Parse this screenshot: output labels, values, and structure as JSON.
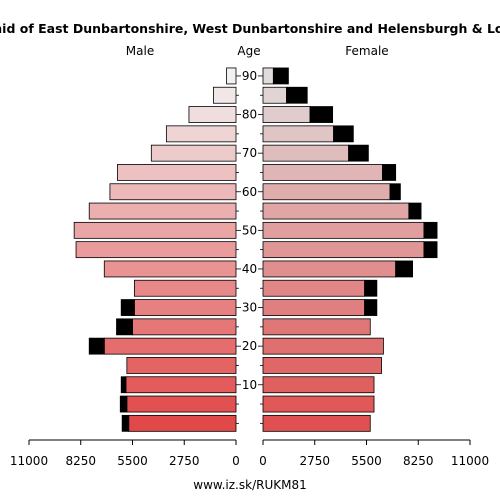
{
  "chart_data": {
    "type": "bar",
    "title": "Pyramid of East Dunbartonshire, West Dunbartonshire and Helensburgh & Lomond",
    "left_label": "Male",
    "center_label": "Age",
    "right_label": "Female",
    "footer": "www.iz.sk/RUKM81",
    "xlim": [
      0,
      11000
    ],
    "x_ticks": [
      0,
      2750,
      5500,
      8250,
      11000
    ],
    "x_tick_labels": [
      "0",
      "2750",
      "5500",
      "8250",
      "11000"
    ],
    "age_groups": [
      "0-4",
      "5-9",
      "10-14",
      "15-19",
      "20-24",
      "25-29",
      "30-34",
      "35-39",
      "40-44",
      "45-49",
      "50-54",
      "55-59",
      "60-64",
      "65-69",
      "70-74",
      "75-79",
      "80-84",
      "85-89",
      "90+"
    ],
    "age_ticks": [
      10,
      20,
      30,
      40,
      50,
      60,
      70,
      80,
      90
    ],
    "series": [
      {
        "name": "Male",
        "values": [
          5700,
          5800,
          5850,
          5800,
          7000,
          5500,
          5400,
          5400,
          7000,
          8500,
          8600,
          7800,
          6700,
          6300,
          4500,
          3700,
          2500,
          1200,
          500
        ],
        "excess": [
          350,
          350,
          250,
          0,
          800,
          850,
          700,
          0,
          0,
          0,
          0,
          0,
          0,
          0,
          0,
          0,
          0,
          0,
          0
        ]
      },
      {
        "name": "Female",
        "values": [
          5700,
          5900,
          5900,
          6300,
          6400,
          5700,
          5400,
          5400,
          7050,
          8550,
          8550,
          7750,
          6750,
          6350,
          4550,
          3750,
          2500,
          1250,
          550
        ],
        "excess": [
          0,
          0,
          0,
          0,
          0,
          0,
          650,
          650,
          900,
          700,
          700,
          650,
          550,
          700,
          1050,
          1050,
          1200,
          1100,
          800
        ]
      }
    ],
    "colors": {
      "male_top": "#f2f0f0",
      "male_bottom": "#e14848",
      "female_top": "#e0dcdc",
      "female_bottom": "#e05050",
      "excess": "#000000"
    }
  }
}
